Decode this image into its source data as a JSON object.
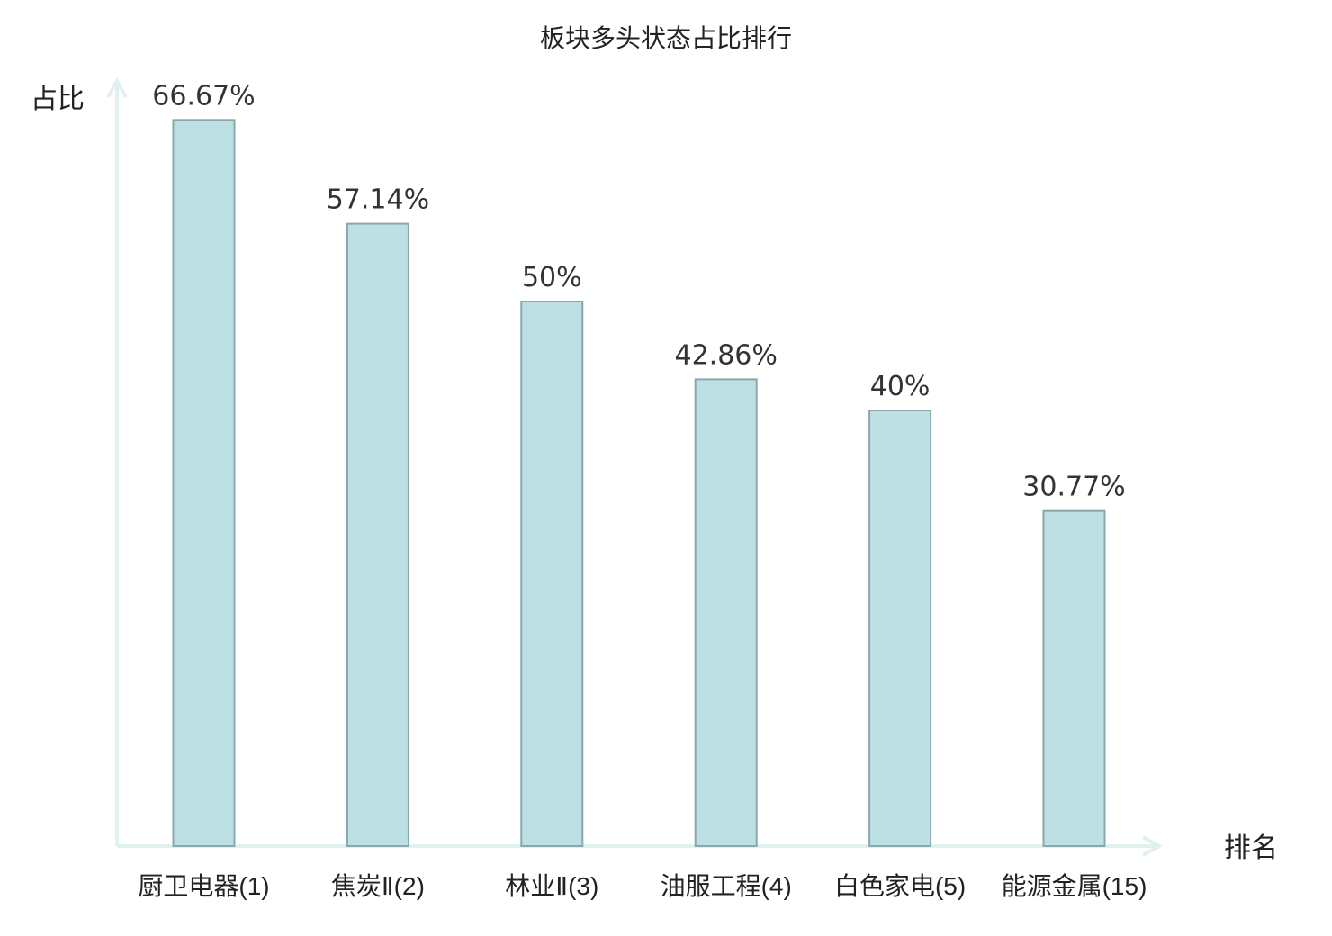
{
  "colors": {
    "bar_fill": "#bce0e3",
    "bar_stroke": "#8aa8ac",
    "axis": "#e0f2f0",
    "text": "#222222",
    "highlight": "#e02020"
  },
  "chart_data": {
    "type": "bar",
    "title": "板块多头状态占比排行",
    "ylabel": "占比",
    "xlabel": "排名",
    "ylim": [
      0,
      70
    ],
    "grid": false,
    "categories": [
      {
        "name": "厨卫电器",
        "rank": "(1)",
        "highlight": false
      },
      {
        "name": "焦炭Ⅱ",
        "rank": "(2)",
        "highlight": false
      },
      {
        "name": "林业Ⅱ",
        "rank": "(3)",
        "highlight": false
      },
      {
        "name": "油服工程",
        "rank": "(4)",
        "highlight": false
      },
      {
        "name": "白色家电",
        "rank": "(5)",
        "highlight": false
      },
      {
        "name": "能源金属",
        "rank": "(15)",
        "highlight": true
      }
    ],
    "values": [
      66.67,
      57.14,
      50,
      42.86,
      40,
      30.77
    ],
    "value_labels": [
      "66.67%",
      "57.14%",
      "50%",
      "42.86%",
      "40%",
      "30.77%"
    ]
  }
}
